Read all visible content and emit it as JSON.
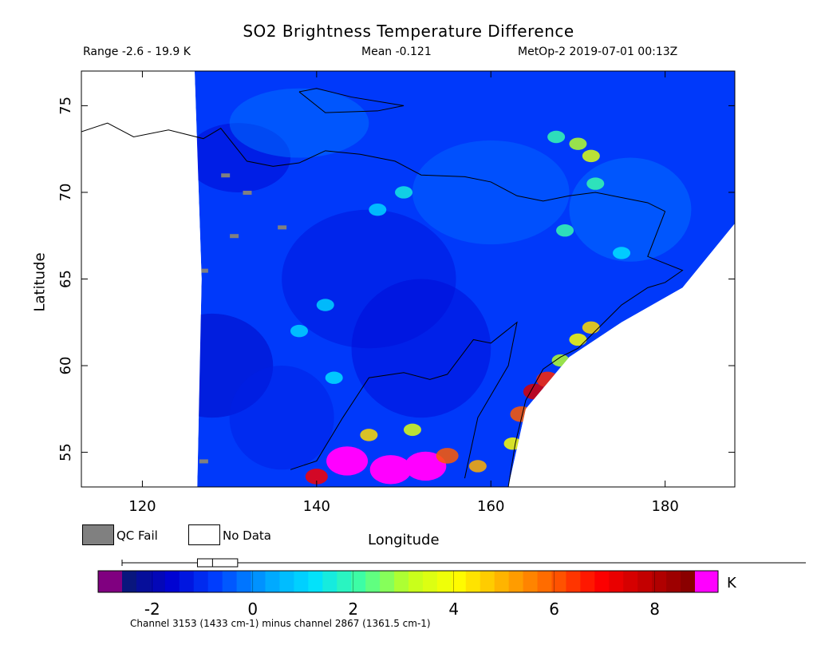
{
  "header": {
    "title": "SO2 Brightness Temperature Difference",
    "range": "Range -2.6 - 19.9 K",
    "mean": "Mean -0.121",
    "satellite": "MetOp-2 2019-07-01 00:13Z"
  },
  "legend": {
    "qc_fail": "QC Fail",
    "no_data": "No Data"
  },
  "colorbar": {
    "unit": "K",
    "ticks": [
      "-2",
      "0",
      "2",
      "4",
      "6",
      "8"
    ],
    "tick_values": [
      -2,
      0,
      2,
      4,
      6,
      8
    ],
    "min": -2.6,
    "max": 8.8,
    "under_color": "#800080",
    "over_color": "#ff00ff",
    "stops": [
      "#0a1a6e",
      "#0000d0",
      "#0040ff",
      "#00a0ff",
      "#00e0ff",
      "#40ffa0",
      "#c0ff20",
      "#ffff00",
      "#ffb000",
      "#ff6000",
      "#ff0000",
      "#c00000",
      "#800000"
    ],
    "boxplot": {
      "whisker_min": -2.6,
      "q1": -1.1,
      "median": -0.8,
      "q3": -0.3,
      "whisker_max": 19.9
    }
  },
  "footnote": "Channel 3153 (1433 cm-1) minus channel 2867 (1361.5 cm-1)",
  "chart_data": {
    "type": "heatmap",
    "title": "SO2 Brightness Temperature Difference",
    "xlabel": "Longitude",
    "ylabel": "Latitude",
    "xlim": [
      113,
      188
    ],
    "ylim": [
      53,
      77
    ],
    "x_ticks": [
      "120",
      "140",
      "160",
      "180"
    ],
    "x_tick_values": [
      120,
      140,
      160,
      180
    ],
    "y_ticks": [
      "55",
      "60",
      "65",
      "70",
      "75"
    ],
    "y_tick_values": [
      55,
      60,
      65,
      70,
      75
    ],
    "background_value": -0.8,
    "swath_west_edge": [
      [
        126,
        77
      ],
      [
        126.8,
        65
      ],
      [
        126.3,
        53
      ]
    ],
    "swath_east_edge": [
      [
        188,
        68.2
      ],
      [
        182,
        64.5
      ],
      [
        175,
        62.5
      ],
      [
        169,
        60.5
      ],
      [
        164,
        57.5
      ],
      [
        162,
        53
      ]
    ],
    "features": [
      {
        "lon": 148.5,
        "lat": 54.0,
        "value": 12,
        "note": "high"
      },
      {
        "lon": 152.5,
        "lat": 54.2,
        "value": 10
      },
      {
        "lon": 143.5,
        "lat": 54.5,
        "value": 10
      },
      {
        "lon": 140,
        "lat": 53.6,
        "value": 7
      },
      {
        "lon": 155,
        "lat": 54.8,
        "value": 6
      },
      {
        "lon": 158.5,
        "lat": 54.2,
        "value": 5
      },
      {
        "lon": 146,
        "lat": 56,
        "value": 4.5
      },
      {
        "lon": 151,
        "lat": 56.3,
        "value": 3.5
      },
      {
        "lon": 165,
        "lat": 58.5,
        "value": 7.5
      },
      {
        "lon": 163.5,
        "lat": 57.2,
        "value": 6
      },
      {
        "lon": 166.5,
        "lat": 59.2,
        "value": 6.5
      },
      {
        "lon": 162.5,
        "lat": 55.5,
        "value": 4
      },
      {
        "lon": 170,
        "lat": 61.5,
        "value": 4
      },
      {
        "lon": 171.5,
        "lat": 62.2,
        "value": 4.5
      },
      {
        "lon": 168,
        "lat": 60.3,
        "value": 3
      },
      {
        "lon": 170,
        "lat": 72.8,
        "value": 3
      },
      {
        "lon": 171.5,
        "lat": 72.1,
        "value": 3.5
      },
      {
        "lon": 167.5,
        "lat": 73.2,
        "value": 2
      },
      {
        "lon": 168.5,
        "lat": 67.8,
        "value": 2
      },
      {
        "lon": 172,
        "lat": 70.5,
        "value": 2
      },
      {
        "lon": 150,
        "lat": 70,
        "value": 1.5
      },
      {
        "lon": 147,
        "lat": 69,
        "value": 1
      },
      {
        "lon": 141,
        "lat": 63.5,
        "value": 1
      },
      {
        "lon": 138,
        "lat": 62,
        "value": 1
      },
      {
        "lon": 142,
        "lat": 59.3,
        "value": 1.2
      },
      {
        "lon": 175,
        "lat": 66.5,
        "value": 1.2
      }
    ],
    "qc_fail_points": [
      [
        136,
        68
      ],
      [
        129.5,
        71
      ],
      [
        130.5,
        67.5
      ],
      [
        127,
        65.5
      ],
      [
        127,
        54.5
      ],
      [
        132,
        70
      ]
    ]
  }
}
